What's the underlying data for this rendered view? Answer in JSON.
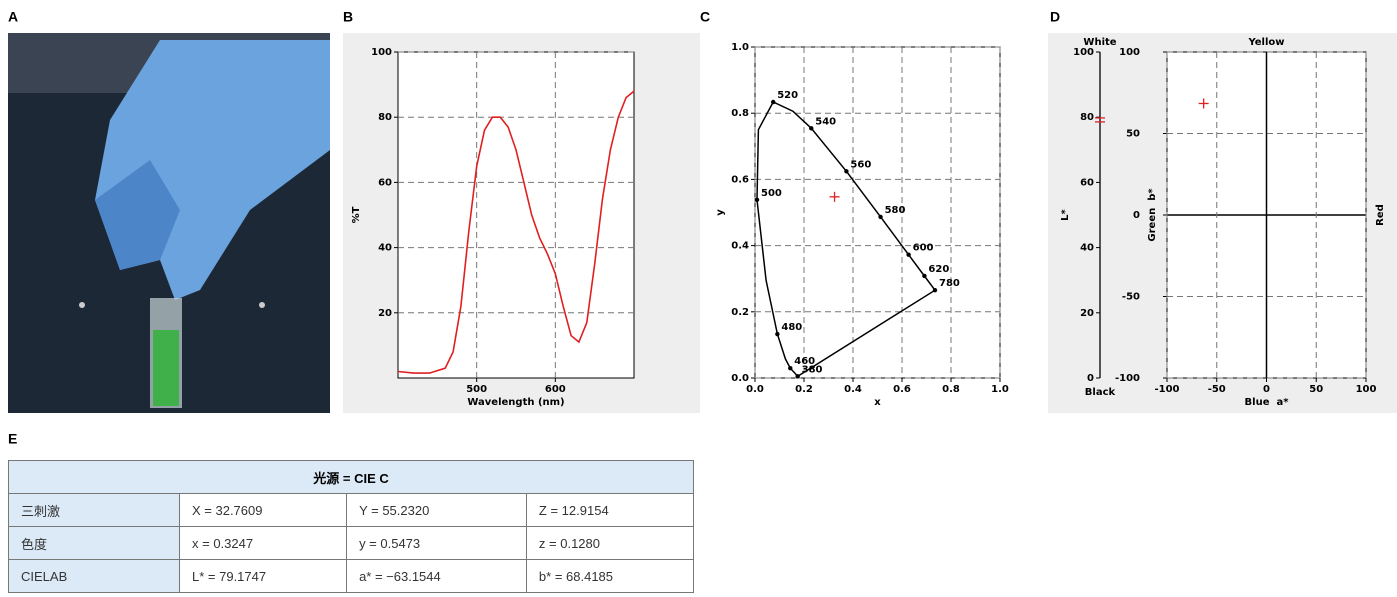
{
  "panel_labels": [
    "A",
    "B",
    "C",
    "D",
    "E"
  ],
  "chart_data": [
    {
      "type": "line",
      "xlabel": "Wavelength (nm)",
      "ylabel": "%T",
      "x": [
        400,
        420,
        440,
        460,
        470,
        480,
        490,
        500,
        510,
        520,
        530,
        540,
        550,
        560,
        570,
        580,
        590,
        600,
        610,
        620,
        630,
        640,
        650,
        660,
        670,
        680,
        690,
        700
      ],
      "series": [
        {
          "color": "#e02020",
          "values": [
            2,
            1.5,
            1.5,
            3,
            8,
            22,
            45,
            65,
            76,
            80,
            80,
            77,
            70,
            60,
            50,
            43,
            38,
            32,
            22,
            13,
            11,
            17,
            35,
            55,
            70,
            80,
            86,
            88
          ]
        }
      ],
      "xlim": [
        400,
        700
      ],
      "ylim": [
        0,
        100
      ],
      "xticks": [
        500,
        600
      ],
      "yticks": [
        20,
        40,
        60,
        80,
        100
      ],
      "grid": true
    },
    {
      "type": "chromaticity",
      "xlabel": "x",
      "ylabel": "y",
      "xlim": [
        0,
        1
      ],
      "ylim": [
        0,
        1
      ],
      "xticks": [
        {
          "value": 0,
          "label": "0.0"
        },
        0.2,
        0.4,
        0.6,
        0.8,
        {
          "value": 1,
          "label": "1.0"
        }
      ],
      "yticks": [
        {
          "value": 0,
          "label": "0.0"
        },
        0.2,
        0.4,
        0.6,
        0.8,
        {
          "value": 1,
          "label": "1.0"
        }
      ],
      "grid": true,
      "series": [
        {
          "color": "#000000",
          "x": [
            0.1741,
            0.144,
            0.1241,
            0.0913,
            0.0454,
            0.0082,
            0.0139,
            0.0743,
            0.1547,
            0.2296,
            0.3731,
            0.5125,
            0.627,
            0.6915,
            0.7347
          ],
          "values": [
            0.005,
            0.0297,
            0.0578,
            0.1327,
            0.295,
            0.5384,
            0.7502,
            0.8338,
            0.8059,
            0.7543,
            0.6245,
            0.4866,
            0.3725,
            0.3083,
            0.2653
          ],
          "point_labels": [
            "380",
            "460",
            null,
            "480",
            null,
            "500",
            null,
            "520",
            null,
            "540",
            "560",
            "580",
            "600",
            "620",
            "780"
          ]
        },
        {
          "color": "#e02020",
          "x": [
            0.3247
          ],
          "values": [
            0.5473
          ]
        }
      ]
    },
    {
      "type": "scale",
      "ylabel": "L*",
      "top_label": "White",
      "bottom_label": "Black",
      "ylim": [
        0,
        100
      ],
      "yticks": [
        0,
        20,
        40,
        60,
        80,
        100
      ],
      "series": [
        {
          "color": "#e02020",
          "values": [
            79.1747
          ]
        }
      ]
    },
    {
      "type": "scatter",
      "xlabel": "Blue  a*",
      "ylabel": "Green  b*",
      "top_label": "Yellow",
      "right_label": "Red",
      "xlim": [
        -100,
        100
      ],
      "ylim": [
        -100,
        100
      ],
      "xticks": [
        -100,
        -50,
        0,
        50,
        100
      ],
      "yticks": [
        -100,
        -50,
        0,
        50,
        100
      ],
      "grid": true,
      "series": [
        {
          "color": "#e02020",
          "x": [
            -63.1544
          ],
          "values": [
            68.4185
          ]
        }
      ]
    }
  ],
  "table": {
    "header": "光源 = CIE C",
    "rows": [
      [
        "三刺激",
        "X = 32.7609",
        "Y = 55.2320",
        "Z = 12.9154"
      ],
      [
        "色度",
        "x = 0.3247",
        "y = 0.5473",
        "z = 0.1280"
      ],
      [
        "CIELAB",
        "L* = 79.1747",
        "a* = −63.1544",
        "b* = 68.4185"
      ]
    ]
  }
}
